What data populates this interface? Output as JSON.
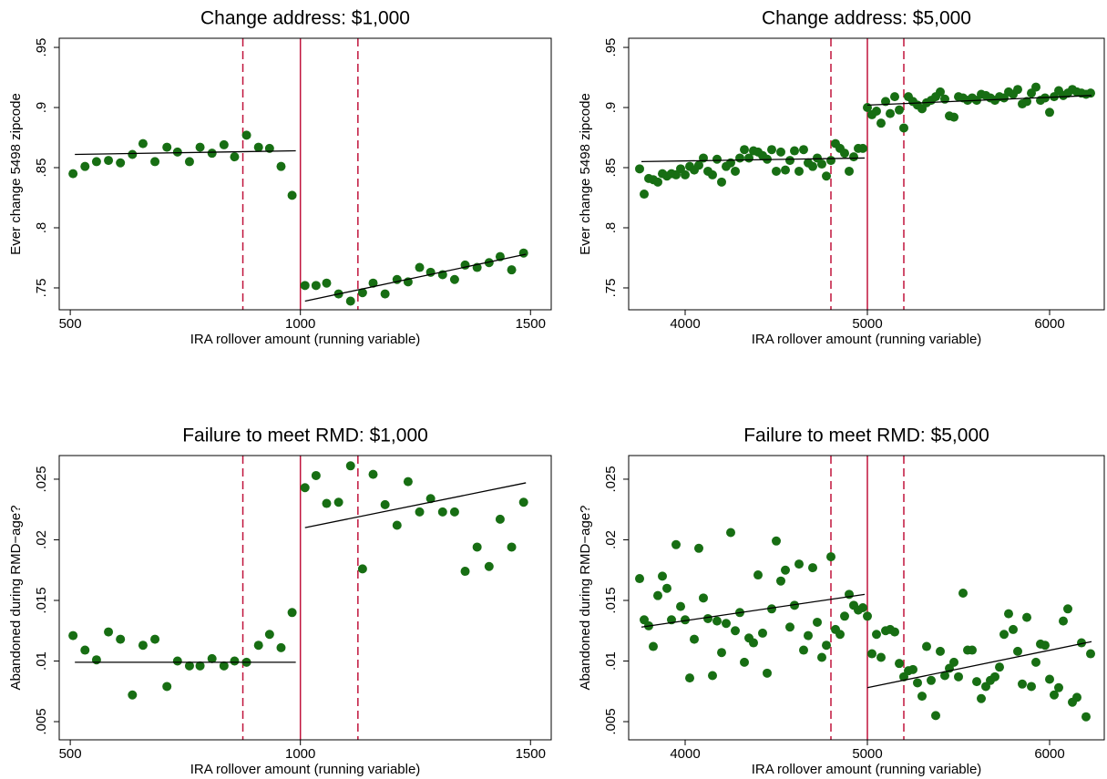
{
  "chart_data": [
    {
      "type": "scatter",
      "title": "Change address: $1,000",
      "x_label": "IRA rollover amount (running variable)",
      "y_label": "Ever change 5498 zipcode",
      "xlim": [
        476,
        1545
      ],
      "ylim": [
        0.7318,
        0.9576
      ],
      "xticks": [
        500,
        1000,
        1500
      ],
      "yticks": [
        {
          "value": 0.75,
          "label": ".75"
        },
        {
          "value": 0.8,
          "label": ".8"
        },
        {
          "value": 0.85,
          "label": ".85"
        },
        {
          "value": 0.9,
          "label": ".9"
        },
        {
          "value": 0.95,
          "label": ".95"
        }
      ],
      "cutoff": 1000,
      "dashed_lines": [
        875,
        1125
      ],
      "line_color": "#c0143c",
      "fit_lines": [
        {
          "x": [
            510,
            990
          ],
          "values": [
            0.861,
            0.864
          ]
        },
        {
          "x": [
            1010,
            1490
          ],
          "values": [
            0.739,
            0.778
          ]
        }
      ],
      "series": [
        {
          "color": "#176e13",
          "x": [
            506,
            532,
            557,
            583,
            609,
            635,
            658,
            684,
            710,
            733,
            759,
            782,
            808,
            834,
            857,
            883,
            909,
            933,
            958,
            982,
            1010,
            1034,
            1057,
            1083,
            1109,
            1135,
            1158,
            1184,
            1210,
            1234,
            1259,
            1283,
            1309,
            1335,
            1358,
            1384,
            1410,
            1434,
            1459,
            1485
          ],
          "values": [
            0.845,
            0.851,
            0.855,
            0.856,
            0.854,
            0.861,
            0.87,
            0.855,
            0.867,
            0.863,
            0.855,
            0.867,
            0.862,
            0.869,
            0.859,
            0.877,
            0.867,
            0.866,
            0.851,
            0.827,
            0.752,
            0.752,
            0.754,
            0.745,
            0.739,
            0.746,
            0.754,
            0.745,
            0.757,
            0.755,
            0.767,
            0.763,
            0.761,
            0.757,
            0.769,
            0.767,
            0.771,
            0.776,
            0.765,
            0.779
          ]
        }
      ]
    },
    {
      "type": "scatter",
      "title": "Change address: $5,000",
      "x_label": "IRA rollover amount (running variable)",
      "y_label": "Ever change 5498 zipcode",
      "xlim": [
        3690,
        6300
      ],
      "ylim": [
        0.7318,
        0.9576
      ],
      "xticks": [
        4000,
        5000,
        6000
      ],
      "yticks": [
        {
          "value": 0.75,
          "label": ".75"
        },
        {
          "value": 0.8,
          "label": ".8"
        },
        {
          "value": 0.85,
          "label": ".85"
        },
        {
          "value": 0.9,
          "label": ".9"
        },
        {
          "value": 0.95,
          "label": ".95"
        }
      ],
      "cutoff": 5000,
      "dashed_lines": [
        4800,
        5200
      ],
      "line_color": "#c0143c",
      "fit_lines": [
        {
          "x": [
            3760,
            4985
          ],
          "values": [
            0.855,
            0.858
          ]
        },
        {
          "x": [
            5000,
            6230
          ],
          "values": [
            0.902,
            0.91
          ]
        }
      ],
      "series": [
        {
          "color": "#176e13",
          "x": [
            3750,
            3775,
            3800,
            3825,
            3850,
            3875,
            3900,
            3925,
            3950,
            3975,
            4000,
            4025,
            4050,
            4075,
            4100,
            4125,
            4150,
            4175,
            4200,
            4225,
            4250,
            4275,
            4300,
            4325,
            4350,
            4375,
            4400,
            4425,
            4450,
            4475,
            4500,
            4525,
            4550,
            4575,
            4600,
            4625,
            4650,
            4675,
            4700,
            4725,
            4750,
            4775,
            4800,
            4825,
            4850,
            4875,
            4900,
            4925,
            4950,
            4975,
            5000,
            5025,
            5050,
            5075,
            5100,
            5125,
            5150,
            5175,
            5200,
            5225,
            5250,
            5275,
            5300,
            5325,
            5350,
            5375,
            5400,
            5425,
            5450,
            5475,
            5500,
            5525,
            5550,
            5575,
            5600,
            5625,
            5650,
            5675,
            5700,
            5725,
            5750,
            5775,
            5800,
            5825,
            5850,
            5875,
            5900,
            5925,
            5950,
            5975,
            6000,
            6025,
            6050,
            6075,
            6100,
            6125,
            6150,
            6175,
            6200,
            6225
          ],
          "values": [
            0.849,
            0.828,
            0.841,
            0.84,
            0.838,
            0.845,
            0.843,
            0.845,
            0.844,
            0.849,
            0.844,
            0.851,
            0.848,
            0.852,
            0.858,
            0.847,
            0.844,
            0.857,
            0.838,
            0.851,
            0.854,
            0.847,
            0.858,
            0.865,
            0.858,
            0.864,
            0.863,
            0.86,
            0.857,
            0.865,
            0.847,
            0.863,
            0.848,
            0.856,
            0.864,
            0.847,
            0.865,
            0.854,
            0.851,
            0.858,
            0.853,
            0.843,
            0.856,
            0.87,
            0.866,
            0.862,
            0.847,
            0.859,
            0.866,
            0.866,
            0.9,
            0.894,
            0.897,
            0.887,
            0.905,
            0.895,
            0.909,
            0.898,
            0.883,
            0.909,
            0.905,
            0.902,
            0.899,
            0.904,
            0.906,
            0.909,
            0.913,
            0.907,
            0.893,
            0.892,
            0.909,
            0.908,
            0.906,
            0.908,
            0.906,
            0.911,
            0.91,
            0.908,
            0.906,
            0.909,
            0.908,
            0.913,
            0.911,
            0.915,
            0.903,
            0.905,
            0.912,
            0.917,
            0.906,
            0.908,
            0.896,
            0.909,
            0.914,
            0.91,
            0.912,
            0.915,
            0.913,
            0.912,
            0.911,
            0.912
          ]
        }
      ]
    },
    {
      "type": "scatter",
      "title": "Failure to meet RMD: $1,000",
      "x_label": "IRA rollover amount (running variable)",
      "y_label": "Abandoned during RMD−age?",
      "xlim": [
        476,
        1545
      ],
      "ylim": [
        0.0035,
        0.02695
      ],
      "xticks": [
        500,
        1000,
        1500
      ],
      "yticks": [
        {
          "value": 0.005,
          "label": ".005"
        },
        {
          "value": 0.01,
          "label": ".01"
        },
        {
          "value": 0.015,
          "label": ".015"
        },
        {
          "value": 0.02,
          "label": ".02"
        },
        {
          "value": 0.025,
          "label": ".025"
        }
      ],
      "cutoff": 1000,
      "dashed_lines": [
        875,
        1125
      ],
      "line_color": "#c0143c",
      "fit_lines": [
        {
          "x": [
            510,
            990
          ],
          "values": [
            0.0099,
            0.0099
          ]
        },
        {
          "x": [
            1010,
            1490
          ],
          "values": [
            0.021,
            0.0247
          ]
        }
      ],
      "series": [
        {
          "color": "#176e13",
          "x": [
            506,
            532,
            557,
            583,
            609,
            635,
            658,
            684,
            710,
            733,
            759,
            782,
            808,
            834,
            857,
            883,
            909,
            933,
            958,
            982,
            1010,
            1034,
            1057,
            1083,
            1109,
            1135,
            1158,
            1184,
            1210,
            1234,
            1259,
            1283,
            1309,
            1335,
            1358,
            1384,
            1410,
            1434,
            1459,
            1485
          ],
          "values": [
            0.0121,
            0.0109,
            0.0101,
            0.0124,
            0.0118,
            0.0072,
            0.0113,
            0.0118,
            0.0079,
            0.01,
            0.0096,
            0.0096,
            0.0102,
            0.0096,
            0.01,
            0.0099,
            0.0113,
            0.0122,
            0.0111,
            0.014,
            0.0243,
            0.0253,
            0.023,
            0.0231,
            0.0261,
            0.0176,
            0.0254,
            0.0229,
            0.0212,
            0.0248,
            0.0223,
            0.0234,
            0.0223,
            0.0223,
            0.0174,
            0.0194,
            0.0178,
            0.0217,
            0.0194,
            0.0231
          ]
        }
      ]
    },
    {
      "type": "scatter",
      "title": "Failure to meet RMD: $5,000",
      "x_label": "IRA rollover amount (running variable)",
      "y_label": "Abandoned during RMD−age?",
      "xlim": [
        3690,
        6300
      ],
      "ylim": [
        0.0035,
        0.02695
      ],
      "xticks": [
        4000,
        5000,
        6000
      ],
      "yticks": [
        {
          "value": 0.005,
          "label": ".005"
        },
        {
          "value": 0.01,
          "label": ".01"
        },
        {
          "value": 0.015,
          "label": ".015"
        },
        {
          "value": 0.02,
          "label": ".02"
        },
        {
          "value": 0.025,
          "label": ".025"
        }
      ],
      "cutoff": 5000,
      "dashed_lines": [
        4800,
        5200
      ],
      "line_color": "#c0143c",
      "fit_lines": [
        {
          "x": [
            3760,
            4985
          ],
          "values": [
            0.0128,
            0.0155
          ]
        },
        {
          "x": [
            5000,
            6230
          ],
          "values": [
            0.0078,
            0.0116
          ]
        }
      ],
      "series": [
        {
          "color": "#176e13",
          "x": [
            3750,
            3775,
            3800,
            3825,
            3850,
            3875,
            3900,
            3925,
            3950,
            3975,
            4000,
            4025,
            4050,
            4075,
            4100,
            4125,
            4150,
            4175,
            4200,
            4225,
            4250,
            4275,
            4300,
            4325,
            4350,
            4375,
            4400,
            4425,
            4450,
            4475,
            4500,
            4525,
            4550,
            4575,
            4600,
            4625,
            4650,
            4675,
            4700,
            4725,
            4750,
            4775,
            4800,
            4825,
            4850,
            4875,
            4900,
            4925,
            4950,
            4975,
            5000,
            5025,
            5050,
            5075,
            5100,
            5125,
            5150,
            5175,
            5200,
            5225,
            5250,
            5275,
            5300,
            5325,
            5350,
            5375,
            5400,
            5425,
            5450,
            5475,
            5500,
            5525,
            5550,
            5575,
            5600,
            5625,
            5650,
            5675,
            5700,
            5725,
            5750,
            5775,
            5800,
            5825,
            5850,
            5875,
            5900,
            5925,
            5950,
            5975,
            6000,
            6025,
            6050,
            6075,
            6100,
            6125,
            6150,
            6175,
            6200,
            6225
          ],
          "values": [
            0.0168,
            0.0134,
            0.0129,
            0.0112,
            0.0154,
            0.017,
            0.016,
            0.0134,
            0.0196,
            0.0145,
            0.0134,
            0.0086,
            0.0118,
            0.0193,
            0.0152,
            0.0135,
            0.0088,
            0.0133,
            0.0107,
            0.0131,
            0.0206,
            0.0125,
            0.014,
            0.0099,
            0.0119,
            0.0115,
            0.0171,
            0.0123,
            0.009,
            0.0143,
            0.0199,
            0.0166,
            0.0175,
            0.0128,
            0.0146,
            0.018,
            0.0109,
            0.0121,
            0.0177,
            0.0132,
            0.0103,
            0.0113,
            0.0186,
            0.0126,
            0.0122,
            0.0137,
            0.0155,
            0.0146,
            0.0142,
            0.0144,
            0.0137,
            0.0106,
            0.0122,
            0.0103,
            0.0125,
            0.0126,
            0.0124,
            0.0098,
            0.0087,
            0.0092,
            0.0093,
            0.0082,
            0.0071,
            0.0112,
            0.0084,
            0.0055,
            0.0108,
            0.0088,
            0.0094,
            0.0099,
            0.0087,
            0.0156,
            0.0109,
            0.0109,
            0.0083,
            0.0069,
            0.0079,
            0.0084,
            0.0087,
            0.0095,
            0.0122,
            0.0139,
            0.0126,
            0.0108,
            0.0081,
            0.0136,
            0.0079,
            0.0099,
            0.0114,
            0.0113,
            0.0085,
            0.0072,
            0.0078,
            0.0133,
            0.0143,
            0.0066,
            0.007,
            0.0115,
            0.0054,
            0.0106
          ]
        }
      ]
    }
  ]
}
